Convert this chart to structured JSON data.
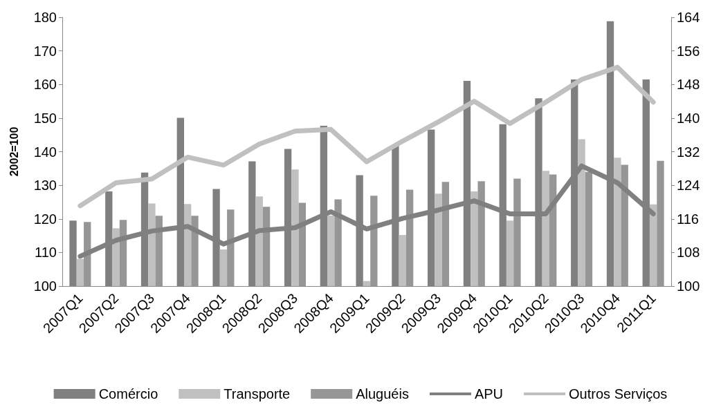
{
  "chart_data": {
    "type": "bar",
    "ylabel": "2002=100",
    "categories": [
      "2007Q1",
      "2007Q2",
      "2007Q3",
      "2007Q4",
      "2008Q1",
      "2008Q2",
      "2008Q3",
      "2008Q4",
      "2009Q1",
      "2009Q2",
      "2009Q3",
      "2009Q4",
      "2010Q1",
      "2010Q2",
      "2010Q3",
      "2010Q4",
      "2011Q1"
    ],
    "series": [
      {
        "name": "Comércio",
        "color": "#808080",
        "values": [
          119.5,
          128.2,
          133.8,
          150.1,
          128.9,
          137.1,
          140.8,
          147.7,
          133.0,
          141.8,
          146.6,
          161.1,
          148.2,
          155.9,
          161.5,
          178.8,
          161.5
        ]
      },
      {
        "name": "Transporte",
        "color": "#c0c0c0",
        "values": [
          108.1,
          117.2,
          124.6,
          124.4,
          110.9,
          126.7,
          134.7,
          121,
          101.5,
          115.2,
          127.5,
          128.2,
          119.5,
          134.3,
          143.7,
          138.2,
          124.3
        ]
      },
      {
        "name": "Aluguéis",
        "color": "#969696",
        "values": [
          119.1,
          119.7,
          120.9,
          120.9,
          122.8,
          123.6,
          124.8,
          125.8,
          126.9,
          128.7,
          131.0,
          131.2,
          132.0,
          133.2,
          134,
          136.1,
          137.3
        ]
      },
      {
        "name": "APU",
        "type": "line",
        "axis": "y2",
        "color": "#808080",
        "values": [
          107.1,
          110.9,
          113.1,
          114.2,
          110.0,
          113.2,
          113.9,
          117.7,
          113.6,
          116.1,
          118.1,
          120.3,
          117.2,
          117.2,
          128.6,
          124.6,
          117.2
        ]
      },
      {
        "name": "Outros Serviços",
        "type": "line",
        "axis": "y2",
        "color": "#c0c0c0",
        "values": [
          119.1,
          124.6,
          125.5,
          130.7,
          128.8,
          133.8,
          136.9,
          137.3,
          129.6,
          134.5,
          139.1,
          144.0,
          138.7,
          143.8,
          149.2,
          152.1,
          143.8
        ]
      }
    ],
    "ylim": [
      100,
      180
    ],
    "yticks": [
      100,
      110,
      120,
      130,
      140,
      150,
      160,
      170,
      180
    ],
    "y2lim": [
      100,
      164
    ],
    "y2ticks": [
      100,
      108,
      116,
      124,
      132,
      140,
      148,
      156,
      164
    ],
    "legend": "bottom",
    "grid": false,
    "marker": "none",
    "line_style": "solid"
  }
}
